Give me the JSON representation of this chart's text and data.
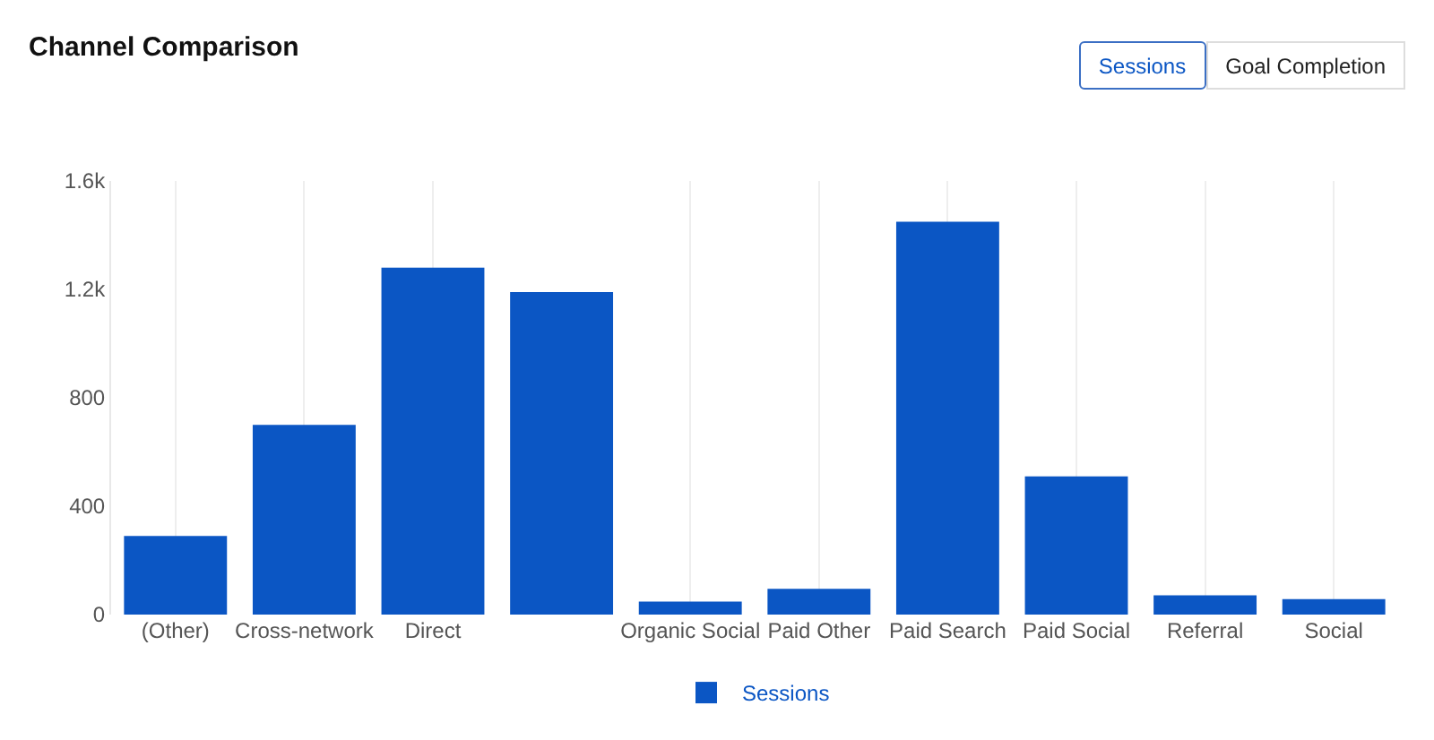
{
  "chart_data": {
    "type": "bar",
    "title": "Channel Comparison",
    "categories": [
      "(Other)",
      "Cross-network",
      "Direct",
      null,
      "Organic Social",
      "Paid Other",
      "Paid Search",
      "Paid Social",
      "Referral",
      "Social"
    ],
    "series": [
      {
        "name": "Sessions",
        "color": "#0b56c4",
        "values": [
          290,
          700,
          1280,
          1190,
          48,
          95,
          1450,
          510,
          71,
          57
        ]
      }
    ],
    "ylim": [
      0,
      1600
    ],
    "yticks": [
      0,
      {
        "value": 400,
        "label": "400"
      },
      {
        "value": 800,
        "label": "800"
      },
      {
        "value": 1200,
        "label": "1.2k"
      },
      {
        "value": 1600,
        "label": "1.6k"
      }
    ],
    "grid": "x",
    "legend": "bottom",
    "annotations": [
      "Sessions",
      "Goal Completion"
    ]
  }
}
